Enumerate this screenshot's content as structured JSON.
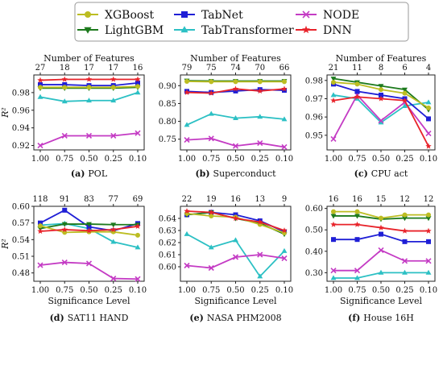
{
  "legend": [
    {
      "name": "XGBoost",
      "color": "#bcbd22",
      "marker": "circle"
    },
    {
      "name": "TabNet",
      "color": "#1f1fd6",
      "marker": "square"
    },
    {
      "name": "NODE",
      "color": "#c43bc4",
      "marker": "x"
    },
    {
      "name": "LightGBM",
      "color": "#1d7a1d",
      "marker": "triangle-down"
    },
    {
      "name": "TabTransformer",
      "color": "#2cc0c4",
      "marker": "triangle-up"
    },
    {
      "name": "DNN",
      "color": "#e8232a",
      "marker": "star"
    }
  ],
  "chart_data": [
    {
      "type": "line",
      "caption_letter": "(a)",
      "caption_name": "POL",
      "top_axis_label": "Number of Features",
      "top_ticks": [
        "27",
        "18",
        "17",
        "17",
        "16"
      ],
      "x_ticks": [
        "1.00",
        "0.75",
        "0.50",
        "0.25",
        "0.10"
      ],
      "xlabel": "",
      "ylabel": "R²",
      "ylim": [
        0.915,
        1.0
      ],
      "yticks": [
        0.92,
        0.94,
        0.96,
        0.98
      ],
      "ytick_labels": [
        "0.92",
        "0.94",
        "0.96",
        "0.98"
      ],
      "series": [
        {
          "name": "XGBoost",
          "values": [
            0.986,
            0.986,
            0.986,
            0.986,
            0.987
          ]
        },
        {
          "name": "LightGBM",
          "values": [
            0.985,
            0.985,
            0.985,
            0.985,
            0.986
          ]
        },
        {
          "name": "TabNet",
          "values": [
            0.989,
            0.989,
            0.988,
            0.988,
            0.991
          ]
        },
        {
          "name": "TabTransformer",
          "values": [
            0.975,
            0.97,
            0.971,
            0.971,
            0.98
          ]
        },
        {
          "name": "NODE",
          "values": [
            0.92,
            0.931,
            0.931,
            0.931,
            0.934
          ]
        },
        {
          "name": "DNN",
          "values": [
            0.994,
            0.995,
            0.995,
            0.995,
            0.995
          ]
        }
      ]
    },
    {
      "type": "line",
      "caption_letter": "(b)",
      "caption_name": "Superconduct",
      "top_axis_label": "Number of Features",
      "top_ticks": [
        "79",
        "75",
        "74",
        "70",
        "66"
      ],
      "x_ticks": [
        "1.00",
        "0.75",
        "0.50",
        "0.25",
        "0.10"
      ],
      "xlabel": "",
      "ylabel": "",
      "ylim": [
        0.72,
        0.93
      ],
      "yticks": [
        0.75,
        0.8,
        0.85,
        0.9
      ],
      "ytick_labels": [
        "0.75",
        "0.80",
        "0.85",
        "0.90"
      ],
      "series": [
        {
          "name": "XGBoost",
          "values": [
            0.912,
            0.911,
            0.911,
            0.911,
            0.911
          ]
        },
        {
          "name": "LightGBM",
          "values": [
            0.914,
            0.913,
            0.913,
            0.913,
            0.913
          ]
        },
        {
          "name": "TabNet",
          "values": [
            0.884,
            0.881,
            0.885,
            0.889,
            0.887
          ]
        },
        {
          "name": "TabTransformer",
          "values": [
            0.79,
            0.821,
            0.809,
            0.813,
            0.806
          ]
        },
        {
          "name": "NODE",
          "values": [
            0.748,
            0.752,
            0.731,
            0.739,
            0.728
          ]
        },
        {
          "name": "DNN",
          "values": [
            0.881,
            0.879,
            0.891,
            0.885,
            0.891
          ]
        }
      ]
    },
    {
      "type": "line",
      "caption_letter": "(c)",
      "caption_name": "CPU act",
      "top_axis_label": "Number of Features",
      "top_ticks": [
        "21",
        "11",
        "8",
        "6",
        "4"
      ],
      "x_ticks": [
        "1.00",
        "0.75",
        "0.50",
        "0.25",
        "0.10"
      ],
      "xlabel": "",
      "ylabel": "",
      "ylim": [
        0.942,
        0.983
      ],
      "yticks": [
        0.95,
        0.96,
        0.97,
        0.98
      ],
      "ytick_labels": [
        "0.95",
        "0.96",
        "0.97",
        "0.98"
      ],
      "series": [
        {
          "name": "XGBoost",
          "values": [
            0.979,
            0.978,
            0.975,
            0.973,
            0.965
          ]
        },
        {
          "name": "LightGBM",
          "values": [
            0.981,
            0.979,
            0.977,
            0.975,
            0.964
          ]
        },
        {
          "name": "TabNet",
          "values": [
            0.978,
            0.974,
            0.972,
            0.97,
            0.959
          ]
        },
        {
          "name": "TabTransformer",
          "values": [
            0.972,
            0.97,
            0.957,
            0.966,
            0.968
          ]
        },
        {
          "name": "NODE",
          "values": [
            0.948,
            0.972,
            0.958,
            0.968,
            0.951
          ]
        },
        {
          "name": "DNN",
          "values": [
            0.969,
            0.971,
            0.97,
            0.969,
            0.944
          ]
        }
      ]
    },
    {
      "type": "line",
      "caption_letter": "(d)",
      "caption_name": "SAT11 HAND",
      "top_axis_label": "",
      "top_ticks": [
        "118",
        "91",
        "83",
        "77",
        "69"
      ],
      "x_ticks": [
        "1.00",
        "0.75",
        "0.50",
        "0.25",
        "0.10"
      ],
      "xlabel": "Significance Level",
      "ylabel": "R²",
      "ylim": [
        0.465,
        0.6
      ],
      "yticks": [
        0.48,
        0.51,
        0.54,
        0.57,
        0.6
      ],
      "ytick_labels": [
        "0.48",
        "0.51",
        "0.54",
        "0.57",
        "0.60"
      ],
      "series": [
        {
          "name": "XGBoost",
          "values": [
            0.565,
            0.553,
            0.554,
            0.554,
            0.548
          ]
        },
        {
          "name": "LightGBM",
          "values": [
            0.56,
            0.568,
            0.568,
            0.567,
            0.567
          ]
        },
        {
          "name": "TabNet",
          "values": [
            0.57,
            0.593,
            0.563,
            0.556,
            0.569
          ]
        },
        {
          "name": "TabTransformer",
          "values": [
            0.566,
            0.569,
            0.56,
            0.536,
            0.526
          ]
        },
        {
          "name": "NODE",
          "values": [
            0.494,
            0.499,
            0.497,
            0.47,
            0.469
          ]
        },
        {
          "name": "DNN",
          "values": [
            0.555,
            0.558,
            0.556,
            0.558,
            0.564
          ]
        }
      ]
    },
    {
      "type": "line",
      "caption_letter": "(e)",
      "caption_name": "NASA PHM2008",
      "top_axis_label": "",
      "top_ticks": [
        "22",
        "19",
        "16",
        "13",
        "9"
      ],
      "x_ticks": [
        "1.00",
        "0.75",
        "0.50",
        "0.25",
        "0.10"
      ],
      "xlabel": "Significance Level",
      "ylabel": "",
      "ylim": [
        0.588,
        0.65
      ],
      "yticks": [
        0.6,
        0.61,
        0.62,
        0.63,
        0.64
      ],
      "ytick_labels": [
        "0.60",
        "0.61",
        "0.62",
        "0.63",
        "0.64"
      ],
      "series": [
        {
          "name": "XGBoost",
          "values": [
            0.644,
            0.642,
            0.641,
            0.635,
            0.628
          ]
        },
        {
          "name": "LightGBM",
          "values": [
            0.643,
            0.645,
            0.64,
            0.636,
            0.627
          ]
        },
        {
          "name": "TabNet",
          "values": [
            0.643,
            0.645,
            0.643,
            0.638,
            0.629
          ]
        },
        {
          "name": "TabTransformer",
          "values": [
            0.627,
            0.616,
            0.622,
            0.592,
            0.613
          ]
        },
        {
          "name": "NODE",
          "values": [
            0.601,
            0.599,
            0.608,
            0.61,
            0.607
          ]
        },
        {
          "name": "DNN",
          "values": [
            0.646,
            0.645,
            0.64,
            0.637,
            0.63
          ]
        }
      ]
    },
    {
      "type": "line",
      "caption_letter": "(f)",
      "caption_name": "House 16H",
      "top_axis_label": "",
      "top_ticks": [
        "16",
        "16",
        "15",
        "12",
        "12"
      ],
      "x_ticks": [
        "1.00",
        "0.75",
        "0.50",
        "0.25",
        "0.10"
      ],
      "xlabel": "Significance Level",
      "ylabel": "",
      "ylim": [
        0.26,
        0.61
      ],
      "yticks": [
        0.3,
        0.4,
        0.5,
        0.6
      ],
      "ytick_labels": [
        "0.30",
        "0.40",
        "0.50",
        "0.60"
      ],
      "series": [
        {
          "name": "XGBoost",
          "values": [
            0.585,
            0.585,
            0.555,
            0.57,
            0.57
          ]
        },
        {
          "name": "LightGBM",
          "values": [
            0.565,
            0.565,
            0.55,
            0.555,
            0.555
          ]
        },
        {
          "name": "TabNet",
          "values": [
            0.455,
            0.455,
            0.48,
            0.445,
            0.445
          ]
        },
        {
          "name": "TabTransformer",
          "values": [
            0.275,
            0.275,
            0.3,
            0.3,
            0.3
          ]
        },
        {
          "name": "NODE",
          "values": [
            0.31,
            0.31,
            0.405,
            0.355,
            0.355
          ]
        },
        {
          "name": "DNN",
          "values": [
            0.525,
            0.525,
            0.51,
            0.495,
            0.495
          ]
        }
      ]
    }
  ]
}
